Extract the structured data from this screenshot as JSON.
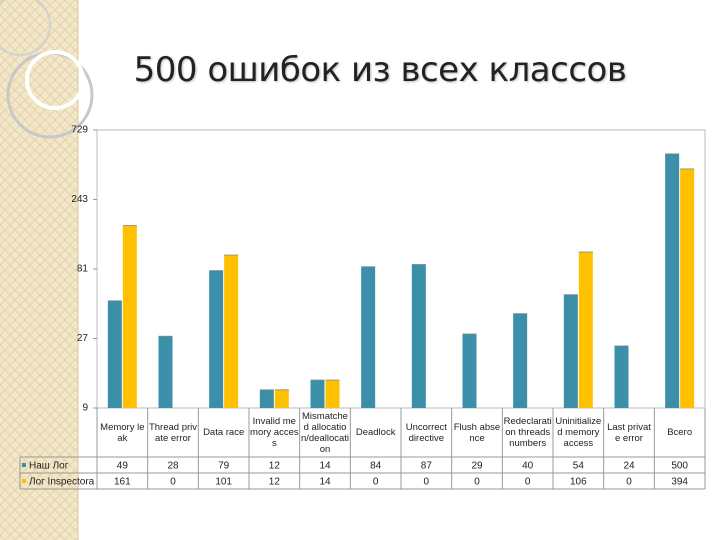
{
  "chart_data": {
    "type": "bar",
    "title": "500 ошибок из всех классов",
    "categories": [
      "Memory leak",
      "Thread private error",
      "Data race",
      "Invalid memory access",
      "Mismatched allocation/deallocation",
      "Deadlock",
      "Uncorrect directive",
      "Flush absence",
      "Redeclaration threads numbers",
      "Uninitialized memory access",
      "Last private error",
      "Всего"
    ],
    "series": [
      {
        "name": "Наш Лог",
        "color": "#3b8fa9",
        "values": [
          49,
          28,
          79,
          12,
          14,
          84,
          87,
          29,
          40,
          54,
          24,
          500
        ]
      },
      {
        "name": "Лог Inspectora",
        "color": "#ffc000",
        "values": [
          161,
          0,
          101,
          12,
          14,
          0,
          0,
          0,
          0,
          106,
          0,
          394
        ]
      }
    ],
    "yscale": "log",
    "ylim": [
      9,
      729
    ],
    "yticks": [
      9,
      27,
      81,
      243,
      729
    ],
    "grid": false
  }
}
